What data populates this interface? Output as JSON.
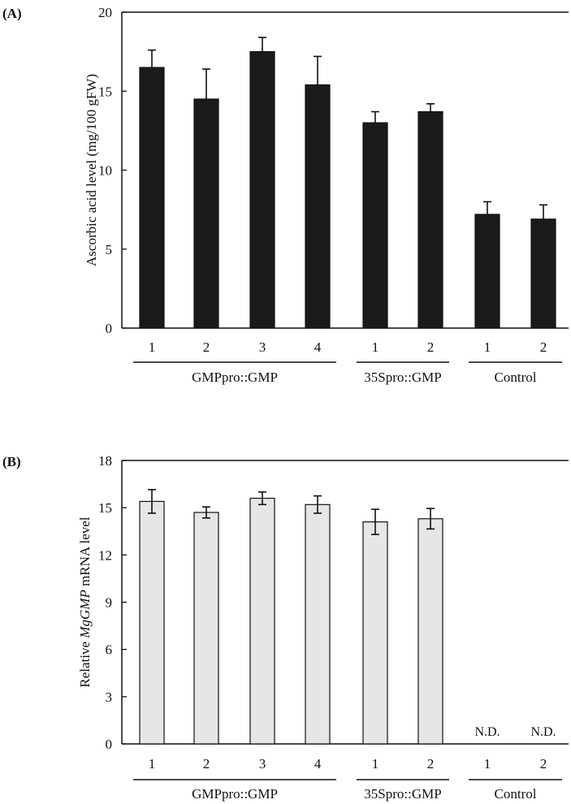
{
  "chart_data": [
    {
      "type": "bar",
      "panel_label": "(A)",
      "ylabel": "Ascorbic acid level (mg/100 gFW)",
      "ylim": [
        0,
        20
      ],
      "yticks": [
        0,
        5,
        10,
        15,
        20
      ],
      "categories": [
        "1",
        "2",
        "3",
        "4",
        "1",
        "2",
        "1",
        "2"
      ],
      "groups": [
        {
          "label": "GMPpro::GMP",
          "count": 4
        },
        {
          "label": "35Spro::GMP",
          "count": 2
        },
        {
          "label": "Control",
          "count": 2
        }
      ],
      "values": [
        16.5,
        14.5,
        17.5,
        15.4,
        13.0,
        13.7,
        7.2,
        6.9
      ],
      "errors": [
        1.1,
        1.9,
        0.9,
        1.8,
        0.7,
        0.5,
        0.8,
        0.9
      ],
      "error_style": "upper",
      "bar_color": "#1a1a1a",
      "grid": false
    },
    {
      "type": "bar",
      "panel_label": "(B)",
      "ylabel_prefix": "Relative ",
      "ylabel_italic": "MgGMP",
      "ylabel_suffix": " mRNA level",
      "ylim": [
        0,
        18
      ],
      "yticks": [
        0,
        3,
        6,
        9,
        12,
        15,
        18
      ],
      "categories": [
        "1",
        "2",
        "3",
        "4",
        "1",
        "2",
        "1",
        "2"
      ],
      "groups": [
        {
          "label": "GMPpro::GMP",
          "count": 4
        },
        {
          "label": "35Spro::GMP",
          "count": 2
        },
        {
          "label": "Control",
          "count": 2
        }
      ],
      "values": [
        15.4,
        14.7,
        15.6,
        15.2,
        14.1,
        14.3,
        null,
        null
      ],
      "errors": [
        0.75,
        0.35,
        0.4,
        0.55,
        0.8,
        0.65,
        null,
        null
      ],
      "annotations": [
        "",
        "",
        "",
        "",
        "",
        "",
        "N.D.",
        "N.D."
      ],
      "error_style": "both",
      "bar_color": "#e6e6e6",
      "grid": false
    }
  ]
}
